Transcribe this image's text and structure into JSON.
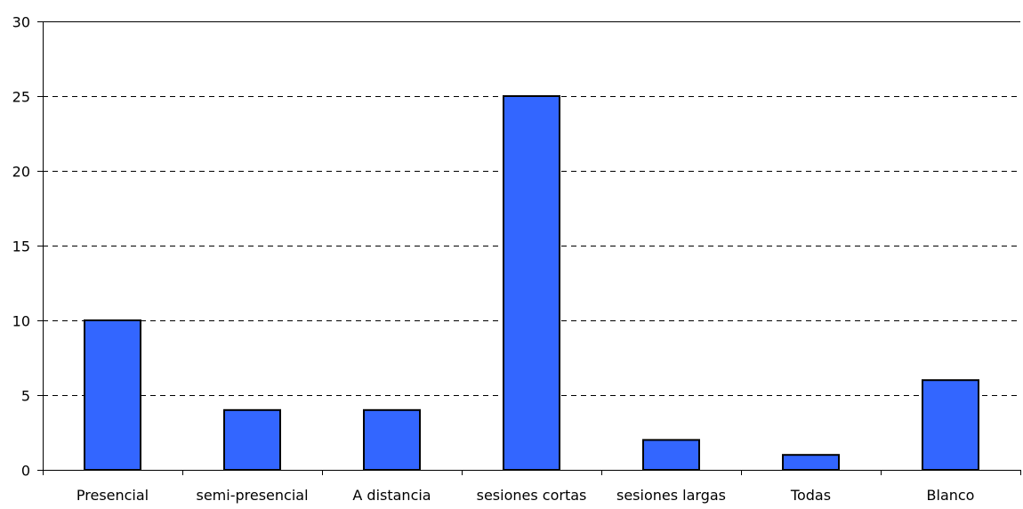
{
  "chart_data": {
    "type": "bar",
    "categories": [
      "Presencial",
      "semi-presencial",
      "A distancia",
      "sesiones cortas",
      "sesiones largas",
      "Todas",
      "Blanco"
    ],
    "values": [
      10,
      4,
      4,
      25,
      2,
      1,
      6
    ],
    "ylim": [
      0,
      30
    ],
    "yticks": [
      0,
      5,
      10,
      15,
      20,
      25,
      30
    ],
    "ytick_labels": [
      "0",
      "5",
      "10",
      "15",
      "20",
      "25",
      "30"
    ],
    "grid": "horizontal dashed",
    "legend": "none",
    "colors": {
      "bar_fill": "#3366ff",
      "bar_stroke": "#000000",
      "grid": "#000000",
      "axis": "#000000"
    }
  }
}
